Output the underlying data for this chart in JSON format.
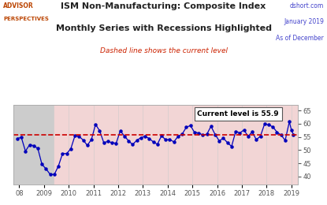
{
  "title_line1": "ISM Non-Manufacturing: Composite Index",
  "title_line2": "Monthly Series with Recessions Highlighted",
  "subtitle": "Dashed line shows the current level",
  "logo_line1": "ADVISOR",
  "logo_line2": "PERSPECTIVES",
  "source_text": "dshort.com",
  "date_text": "January 2019",
  "as_of_text": "As of December",
  "current_level": 55.9,
  "current_level_label": "Current level is 55.9",
  "ylim": [
    37,
    67
  ],
  "yticks": [
    40,
    45,
    50,
    55,
    60,
    65
  ],
  "xlim_start": 2007.75,
  "xlim_end": 2019.25,
  "recession_gray_start": 2007.75,
  "recession_gray_end": 2009.42,
  "recession_pink_start": 2009.42,
  "recession_pink_end": 2019.25,
  "gray_color": "#cccccc",
  "pink_color": "#f2d5d5",
  "line_color": "#0000bb",
  "dot_color": "#0000bb",
  "dashed_line_color": "#cc0000",
  "title_color": "#222222",
  "subtitle_color": "#cc2200",
  "data": [
    [
      2007.917,
      54.4
    ],
    [
      2008.083,
      54.8
    ],
    [
      2008.25,
      49.6
    ],
    [
      2008.417,
      52.0
    ],
    [
      2008.583,
      51.7
    ],
    [
      2008.75,
      50.6
    ],
    [
      2008.917,
      44.6
    ],
    [
      2009.083,
      42.9
    ],
    [
      2009.25,
      40.8
    ],
    [
      2009.417,
      40.8
    ],
    [
      2009.583,
      44.0
    ],
    [
      2009.75,
      48.7
    ],
    [
      2009.917,
      48.7
    ],
    [
      2010.083,
      50.5
    ],
    [
      2010.25,
      55.4
    ],
    [
      2010.417,
      55.2
    ],
    [
      2010.583,
      53.8
    ],
    [
      2010.75,
      51.8
    ],
    [
      2010.917,
      54.0
    ],
    [
      2011.083,
      59.7
    ],
    [
      2011.25,
      57.3
    ],
    [
      2011.417,
      52.8
    ],
    [
      2011.583,
      53.3
    ],
    [
      2011.75,
      52.8
    ],
    [
      2011.917,
      52.6
    ],
    [
      2012.083,
      57.3
    ],
    [
      2012.25,
      55.3
    ],
    [
      2012.417,
      53.5
    ],
    [
      2012.583,
      52.1
    ],
    [
      2012.75,
      53.7
    ],
    [
      2012.917,
      54.7
    ],
    [
      2013.083,
      55.2
    ],
    [
      2013.25,
      54.4
    ],
    [
      2013.417,
      53.1
    ],
    [
      2013.583,
      52.2
    ],
    [
      2013.75,
      55.4
    ],
    [
      2013.917,
      53.9
    ],
    [
      2014.083,
      54.0
    ],
    [
      2014.25,
      53.1
    ],
    [
      2014.417,
      55.2
    ],
    [
      2014.583,
      56.0
    ],
    [
      2014.75,
      58.6
    ],
    [
      2014.917,
      59.3
    ],
    [
      2015.083,
      56.7
    ],
    [
      2015.25,
      56.5
    ],
    [
      2015.417,
      55.7
    ],
    [
      2015.583,
      56.0
    ],
    [
      2015.75,
      59.0
    ],
    [
      2015.917,
      55.9
    ],
    [
      2016.083,
      53.5
    ],
    [
      2016.25,
      54.5
    ],
    [
      2016.417,
      52.8
    ],
    [
      2016.583,
      51.4
    ],
    [
      2016.75,
      57.1
    ],
    [
      2016.917,
      56.5
    ],
    [
      2017.083,
      57.6
    ],
    [
      2017.25,
      55.2
    ],
    [
      2017.417,
      56.9
    ],
    [
      2017.583,
      53.9
    ],
    [
      2017.75,
      55.3
    ],
    [
      2017.917,
      59.9
    ],
    [
      2018.083,
      59.5
    ],
    [
      2018.25,
      58.8
    ],
    [
      2018.417,
      56.8
    ],
    [
      2018.583,
      55.7
    ],
    [
      2018.75,
      53.7
    ],
    [
      2018.917,
      60.7
    ],
    [
      2019.0,
      57.6
    ],
    [
      2019.083,
      55.9
    ]
  ],
  "xticks": [
    2008,
    2009,
    2010,
    2011,
    2012,
    2013,
    2014,
    2015,
    2016,
    2017,
    2018,
    2019
  ],
  "xtick_labels": [
    "08",
    "2009",
    "2010",
    "2011",
    "2012",
    "2013",
    "2014",
    "2015",
    "2016",
    "2017",
    "2018",
    "2019"
  ]
}
